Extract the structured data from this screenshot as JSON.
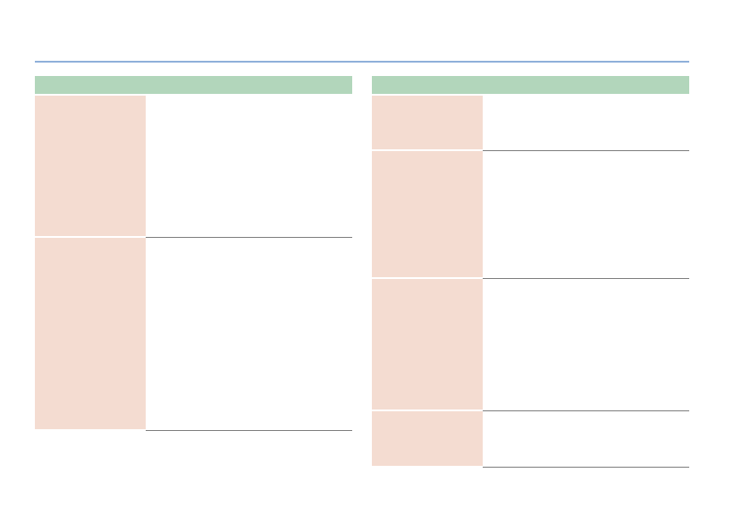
{
  "document": {
    "left_table": {
      "header": "",
      "rows": [
        {
          "label": "",
          "value": ""
        },
        {
          "label": "",
          "value": ""
        }
      ]
    },
    "right_table": {
      "header": "",
      "rows": [
        {
          "label": "",
          "value": ""
        },
        {
          "label": "",
          "value": ""
        },
        {
          "label": "",
          "value": ""
        },
        {
          "label": "",
          "value": ""
        }
      ]
    }
  },
  "colors": {
    "rule": "#8fb0da",
    "header_fill": "#b2d6bb",
    "label_fill": "#f4dcd1",
    "row_divider": "#7d7d7d"
  }
}
